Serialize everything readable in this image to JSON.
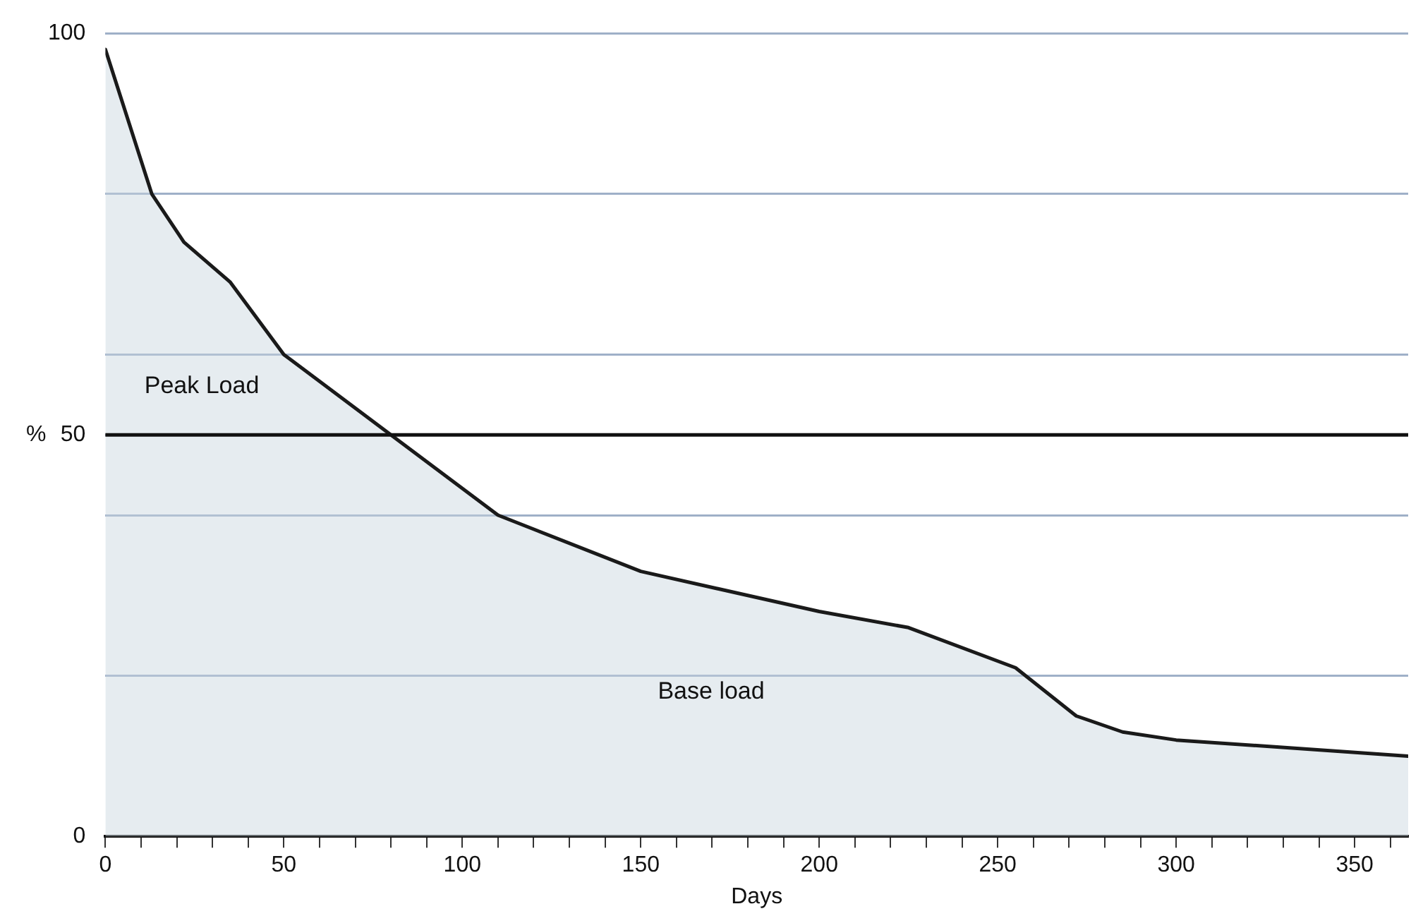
{
  "chart_data": {
    "type": "area",
    "xlabel": "Days",
    "ylabel": "%",
    "x": [
      0,
      13,
      22,
      35,
      50,
      80,
      110,
      150,
      200,
      225,
      255,
      272,
      285,
      300,
      365
    ],
    "series": [
      {
        "color": "#1a1a1a",
        "values": [
          98,
          80,
          74,
          69,
          60,
          50,
          40,
          33,
          28,
          26,
          21,
          15,
          13,
          12,
          10
        ]
      }
    ],
    "xlim": [
      0,
      365
    ],
    "xticks": [
      0,
      {
        "value": 10,
        "label": null
      },
      {
        "value": 20,
        "label": null
      },
      {
        "value": 30,
        "label": null
      },
      {
        "value": 40,
        "label": null
      },
      50,
      {
        "value": 60,
        "label": null
      },
      {
        "value": 70,
        "label": null
      },
      {
        "value": 80,
        "label": null
      },
      {
        "value": 90,
        "label": null
      },
      100,
      {
        "value": 110,
        "label": null
      },
      {
        "value": 120,
        "label": null
      },
      {
        "value": 130,
        "label": null
      },
      {
        "value": 140,
        "label": null
      },
      150,
      {
        "value": 160,
        "label": null
      },
      {
        "value": 170,
        "label": null
      },
      {
        "value": 180,
        "label": null
      },
      {
        "value": 190,
        "label": null
      },
      200,
      {
        "value": 210,
        "label": null
      },
      {
        "value": 220,
        "label": null
      },
      {
        "value": 230,
        "label": null
      },
      {
        "value": 240,
        "label": null
      },
      250,
      {
        "value": 260,
        "label": null
      },
      {
        "value": 270,
        "label": null
      },
      {
        "value": 280,
        "label": null
      },
      {
        "value": 290,
        "label": null
      },
      300,
      {
        "value": 310,
        "label": null
      },
      {
        "value": 320,
        "label": null
      },
      {
        "value": 330,
        "label": null
      },
      {
        "value": 340,
        "label": null
      },
      350,
      {
        "value": 360,
        "label": null
      }
    ],
    "ylim": [
      0,
      100
    ],
    "yticks": [
      0,
      {
        "value": 20,
        "label": null
      },
      {
        "value": 40,
        "label": null
      },
      50,
      {
        "value": 60,
        "label": null
      },
      {
        "value": 80,
        "label": null
      },
      100
    ],
    "grid": "y",
    "legend": false,
    "marker": "none",
    "line_style": "solid",
    "ref_lines": [
      {
        "axis": "y",
        "value": 50,
        "color": "#111111"
      }
    ],
    "annotations": [
      "Peak Load",
      "Base load"
    ]
  }
}
